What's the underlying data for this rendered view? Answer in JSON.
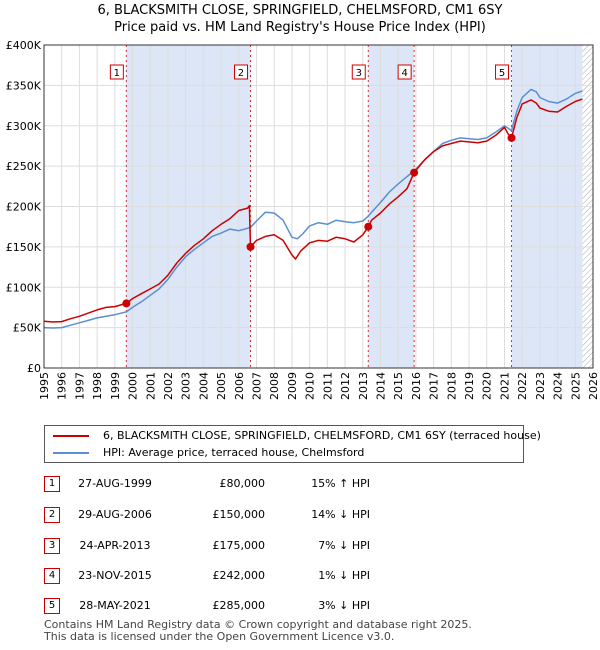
{
  "title_line1": "6, BLACKSMITH CLOSE, SPRINGFIELD, CHELMSFORD, CM1 6SY",
  "title_line2": "Price paid vs. HM Land Registry's House Price Index (HPI)",
  "legend": {
    "property": "6, BLACKSMITH CLOSE, SPRINGFIELD, CHELMSFORD, CM1 6SY (terraced house)",
    "hpi": "HPI: Average price, terraced house, Chelmsford"
  },
  "colors": {
    "property": "#cc0000",
    "hpi": "#5b8fd0",
    "shade": "#dde6f7",
    "grid": "#dddddd",
    "hatch": "#aaaaaa"
  },
  "sales": [
    {
      "num": "1",
      "date": "27-AUG-1999",
      "price": "£80,000",
      "hpi": "15% ↑ HPI"
    },
    {
      "num": "2",
      "date": "29-AUG-2006",
      "price": "£150,000",
      "hpi": "14% ↓ HPI"
    },
    {
      "num": "3",
      "date": "24-APR-2013",
      "price": "£175,000",
      "hpi": "7% ↓ HPI"
    },
    {
      "num": "4",
      "date": "23-NOV-2015",
      "price": "£242,000",
      "hpi": "1% ↓ HPI"
    },
    {
      "num": "5",
      "date": "28-MAY-2021",
      "price": "£285,000",
      "hpi": "3% ↓ HPI"
    }
  ],
  "footer_line1": "Contains HM Land Registry data © Crown copyright and database right 2025.",
  "footer_line2": "This data is licensed under the Open Government Licence v3.0.",
  "chart_data": {
    "type": "line",
    "title": "6, BLACKSMITH CLOSE, SPRINGFIELD, CHELMSFORD, CM1 6SY",
    "subtitle": "Price paid vs. HM Land Registry's House Price Index (HPI)",
    "xlabel": "",
    "ylabel": "",
    "xlim": [
      1995,
      2026
    ],
    "ylim": [
      0,
      400000
    ],
    "x_ticks": [
      1995,
      1996,
      1997,
      1998,
      1999,
      2000,
      2001,
      2002,
      2003,
      2004,
      2005,
      2006,
      2007,
      2008,
      2009,
      2010,
      2011,
      2012,
      2013,
      2014,
      2015,
      2016,
      2017,
      2018,
      2019,
      2020,
      2021,
      2022,
      2023,
      2024,
      2025,
      2026
    ],
    "y_ticks": [
      {
        "value": 0,
        "label": "£0"
      },
      {
        "value": 50000,
        "label": "£50K"
      },
      {
        "value": 100000,
        "label": "£100K"
      },
      {
        "value": 150000,
        "label": "£150K"
      },
      {
        "value": 200000,
        "label": "£200K"
      },
      {
        "value": 250000,
        "label": "£250K"
      },
      {
        "value": 300000,
        "label": "£300K"
      },
      {
        "value": 350000,
        "label": "£350K"
      },
      {
        "value": 400000,
        "label": "£400K"
      }
    ],
    "grid": true,
    "data_end": 2025.4,
    "shaded_periods": [
      [
        1999.65,
        2006.66
      ],
      [
        2013.31,
        2015.9
      ],
      [
        2021.4,
        2025.4
      ]
    ],
    "series": [
      {
        "name": "6, BLACKSMITH CLOSE, SPRINGFIELD, CHELMSFORD, CM1 6SY (terraced house)",
        "x": [
          1995.0,
          1995.5,
          1996.0,
          1996.5,
          1997.0,
          1997.5,
          1998.0,
          1998.5,
          1999.0,
          1999.65,
          2000.0,
          2000.5,
          2001.0,
          2001.5,
          2002.0,
          2002.5,
          2003.0,
          2003.5,
          2004.0,
          2004.5,
          2005.0,
          2005.5,
          2006.0,
          2006.5,
          2006.6,
          2006.66,
          2007.0,
          2007.5,
          2008.0,
          2008.5,
          2009.0,
          2009.2,
          2009.5,
          2010.0,
          2010.5,
          2011.0,
          2011.5,
          2012.0,
          2012.5,
          2013.0,
          2013.31,
          2013.5,
          2014.0,
          2014.5,
          2015.0,
          2015.5,
          2015.9,
          2016.5,
          2017.0,
          2017.5,
          2018.0,
          2018.5,
          2019.0,
          2019.5,
          2020.0,
          2020.5,
          2021.0,
          2021.2,
          2021.4,
          2021.7,
          2022.0,
          2022.5,
          2022.8,
          2023.0,
          2023.5,
          2024.0,
          2024.5,
          2025.0,
          2025.4
        ],
        "values": [
          58000,
          57000,
          57500,
          61000,
          64000,
          68000,
          72000,
          75000,
          76000,
          80000,
          86000,
          92000,
          98000,
          104000,
          115000,
          130000,
          142000,
          152000,
          160000,
          170000,
          178000,
          185000,
          195000,
          198000,
          201000,
          150000,
          158000,
          163000,
          165000,
          158000,
          140000,
          135000,
          145000,
          155000,
          158000,
          157000,
          162000,
          160000,
          156000,
          165000,
          175000,
          183000,
          192000,
          203000,
          212000,
          222000,
          242000,
          258000,
          268000,
          275000,
          278000,
          281000,
          280000,
          279000,
          281000,
          288000,
          298000,
          290000,
          285000,
          310000,
          327000,
          332000,
          328000,
          322000,
          318000,
          317000,
          324000,
          330000,
          333000
        ]
      },
      {
        "name": "HPI: Average price, terraced house, Chelmsford",
        "x": [
          1995.0,
          1995.5,
          1996.0,
          1996.5,
          1997.0,
          1997.5,
          1998.0,
          1998.5,
          1999.0,
          1999.65,
          2000.0,
          2000.5,
          2001.0,
          2001.5,
          2002.0,
          2002.5,
          2003.0,
          2003.5,
          2004.0,
          2004.5,
          2005.0,
          2005.5,
          2006.0,
          2006.66,
          2007.0,
          2007.5,
          2008.0,
          2008.5,
          2009.0,
          2009.3,
          2009.6,
          2010.0,
          2010.5,
          2011.0,
          2011.5,
          2012.0,
          2012.5,
          2013.0,
          2013.31,
          2013.5,
          2014.0,
          2014.5,
          2015.0,
          2015.5,
          2015.9,
          2016.5,
          2017.0,
          2017.5,
          2018.0,
          2018.5,
          2019.0,
          2019.5,
          2020.0,
          2020.5,
          2021.0,
          2021.4,
          2021.7,
          2022.0,
          2022.5,
          2022.8,
          2023.0,
          2023.5,
          2024.0,
          2024.5,
          2025.0,
          2025.4
        ],
        "values": [
          50000,
          49500,
          50000,
          53000,
          56000,
          59000,
          62000,
          64000,
          66000,
          69500,
          75000,
          82000,
          90000,
          98000,
          110000,
          125000,
          138000,
          147000,
          155000,
          163000,
          167000,
          172000,
          170000,
          174000,
          182000,
          193000,
          192000,
          183000,
          162000,
          160000,
          166000,
          176000,
          180000,
          178000,
          183000,
          181000,
          180000,
          182000,
          188000,
          193000,
          205000,
          218000,
          228000,
          237000,
          244000,
          258000,
          268000,
          278000,
          282000,
          285000,
          284000,
          283000,
          285000,
          292000,
          300000,
          294000,
          318000,
          335000,
          345000,
          342000,
          335000,
          330000,
          328000,
          333000,
          340000,
          343000
        ]
      }
    ],
    "sale_points": [
      {
        "label": "1",
        "x": 1999.65,
        "y": 80000
      },
      {
        "label": "2",
        "x": 2006.66,
        "y": 150000
      },
      {
        "label": "3",
        "x": 2013.31,
        "y": 175000
      },
      {
        "label": "4",
        "x": 2015.9,
        "y": 242000
      },
      {
        "label": "5",
        "x": 2021.4,
        "y": 285000
      }
    ]
  }
}
